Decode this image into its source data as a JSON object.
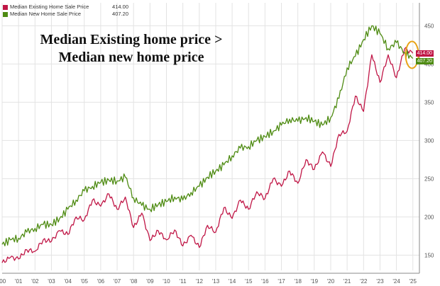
{
  "legend": {
    "existing_label": "Median Existing Home Sale Price",
    "existing_value": "414.00",
    "new_label": "Median New Home Sale Price",
    "new_value": "407.20"
  },
  "annotation": {
    "line1": "Median Existing home price >",
    "line2": "Median new home price"
  },
  "tags": {
    "existing": "414.00",
    "new": "407.20"
  },
  "colors": {
    "existing": "#c01646",
    "new": "#4e8b12",
    "highlight_circle": "#e8a317",
    "grid": "#e3e3e3",
    "axis_text": "#555555"
  },
  "chart_data": {
    "type": "line",
    "title": "",
    "xlabel": "",
    "ylabel": "",
    "x_tick_labels": [
      "'00",
      "'01",
      "'02",
      "'03",
      "'04",
      "'05",
      "'06",
      "'07",
      "'08",
      "'09",
      "'10",
      "'11",
      "'12",
      "'13",
      "'14",
      "'15",
      "'16",
      "'17",
      "'18",
      "'19",
      "'20",
      "'21",
      "'22",
      "'23",
      "'24",
      "'25"
    ],
    "y_ticks": [
      150,
      200,
      250,
      300,
      350,
      400,
      450
    ],
    "xlim": [
      2000.0,
      2025.4
    ],
    "ylim": [
      130,
      480
    ],
    "grid": true,
    "legend_position": "top-left",
    "series": [
      {
        "name": "Median Existing Home Sale Price",
        "color": "#c01646",
        "x": [
          2000.0,
          2000.5,
          2001.0,
          2001.5,
          2002.0,
          2002.5,
          2003.0,
          2003.5,
          2004.0,
          2004.5,
          2005.0,
          2005.5,
          2006.0,
          2006.5,
          2007.0,
          2007.5,
          2008.0,
          2008.5,
          2009.0,
          2009.5,
          2010.0,
          2010.5,
          2011.0,
          2011.5,
          2012.0,
          2012.5,
          2013.0,
          2013.5,
          2014.0,
          2014.5,
          2015.0,
          2015.5,
          2016.0,
          2016.5,
          2017.0,
          2017.5,
          2018.0,
          2018.5,
          2019.0,
          2019.5,
          2020.0,
          2020.5,
          2021.0,
          2021.5,
          2022.0,
          2022.5,
          2023.0,
          2023.5,
          2024.0,
          2024.5,
          2025.0
        ],
        "y": [
          140,
          147,
          145,
          157,
          155,
          170,
          168,
          182,
          177,
          200,
          196,
          222,
          214,
          230,
          210,
          226,
          186,
          205,
          169,
          182,
          170,
          183,
          162,
          176,
          160,
          189,
          180,
          212,
          198,
          222,
          210,
          233,
          224,
          250,
          240,
          260,
          244,
          275,
          262,
          285,
          266,
          308,
          312,
          358,
          338,
          412,
          376,
          412,
          382,
          420,
          414
        ],
        "last_value": 414.0
      },
      {
        "name": "Median New Home Sale Price",
        "color": "#4e8b12",
        "x": [
          2000.0,
          2000.5,
          2001.0,
          2001.5,
          2002.0,
          2002.5,
          2003.0,
          2003.5,
          2004.0,
          2004.5,
          2005.0,
          2005.5,
          2006.0,
          2006.5,
          2007.0,
          2007.5,
          2008.0,
          2008.5,
          2009.0,
          2009.5,
          2010.0,
          2010.5,
          2011.0,
          2011.5,
          2012.0,
          2012.5,
          2013.0,
          2013.5,
          2014.0,
          2014.5,
          2015.0,
          2015.5,
          2016.0,
          2016.5,
          2017.0,
          2017.5,
          2018.0,
          2018.5,
          2019.0,
          2019.5,
          2020.0,
          2020.5,
          2021.0,
          2021.5,
          2022.0,
          2022.5,
          2023.0,
          2023.5,
          2024.0,
          2024.5,
          2025.0
        ],
        "y": [
          164,
          170,
          172,
          180,
          185,
          190,
          190,
          198,
          210,
          222,
          234,
          240,
          245,
          248,
          247,
          252,
          225,
          215,
          210,
          216,
          220,
          226,
          222,
          232,
          240,
          252,
          260,
          268,
          280,
          290,
          292,
          300,
          305,
          312,
          320,
          328,
          325,
          330,
          325,
          320,
          330,
          355,
          395,
          410,
          432,
          450,
          440,
          420,
          428,
          415,
          407.2
        ],
        "last_value": 407.2
      }
    ]
  }
}
